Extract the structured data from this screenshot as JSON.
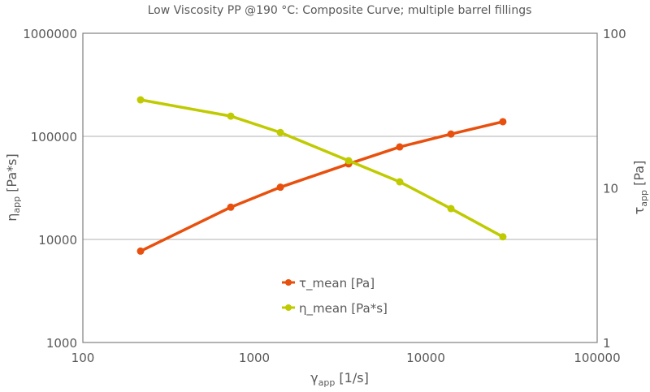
{
  "chart_data": {
    "type": "line",
    "title": "Low Viscosity PP @190 °C: Composite Curve; multiple barrel fillings",
    "xlabel": {
      "symbol": "γ",
      "sub": "app",
      "unit": " [1/s]"
    },
    "ylabel_left": {
      "symbol": "η",
      "sub": "app",
      "unit": " [Pa*s]"
    },
    "ylabel_right": {
      "symbol": "τ",
      "sub": "app",
      "unit": " [Pa]"
    },
    "xscale": "log",
    "xlim": [
      100,
      100000
    ],
    "ylim_left": [
      1000,
      1000000
    ],
    "ylim_right": [
      1,
      100
    ],
    "xticks": [
      "100",
      "1000",
      "10000",
      "100000"
    ],
    "yticks_left": [
      "1000",
      "10000",
      "100000",
      "1000000"
    ],
    "yticks_right": [
      "1",
      "10",
      "100"
    ],
    "grid": "horizontal",
    "legend": "center-bottom",
    "x": [
      217,
      729,
      1419,
      3548,
      7050,
      14030,
      28180
    ],
    "series": [
      {
        "name": "τ_mean [Pa]",
        "axis": "right",
        "color": "#E8500E",
        "values": [
          3.9,
          7.5,
          10.1,
          14.3,
          18.4,
          22.3,
          26.8
        ]
      },
      {
        "name": "η_mean [Pa*s]",
        "axis": "left",
        "color": "#BFCB00",
        "values": [
          226000,
          157000,
          109000,
          58000,
          36200,
          19900,
          10600
        ]
      }
    ]
  }
}
